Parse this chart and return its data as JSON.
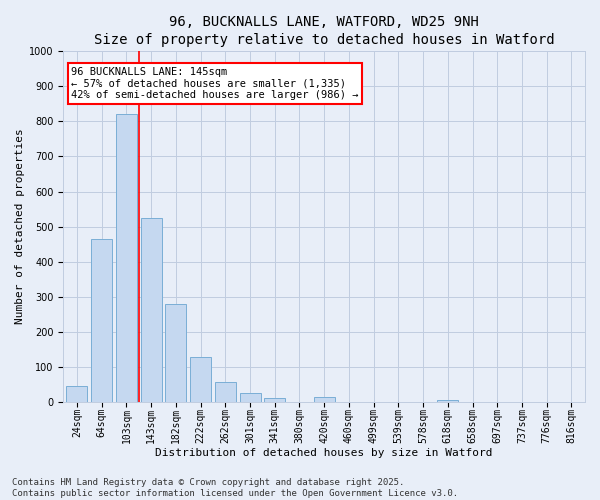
{
  "title": "96, BUCKNALLS LANE, WATFORD, WD25 9NH",
  "subtitle": "Size of property relative to detached houses in Watford",
  "xlabel": "Distribution of detached houses by size in Watford",
  "ylabel": "Number of detached properties",
  "categories": [
    "24sqm",
    "64sqm",
    "103sqm",
    "143sqm",
    "182sqm",
    "222sqm",
    "262sqm",
    "301sqm",
    "341sqm",
    "380sqm",
    "420sqm",
    "460sqm",
    "499sqm",
    "539sqm",
    "578sqm",
    "618sqm",
    "658sqm",
    "697sqm",
    "737sqm",
    "776sqm",
    "816sqm"
  ],
  "values": [
    46,
    465,
    820,
    525,
    278,
    128,
    57,
    25,
    10,
    0,
    13,
    0,
    0,
    0,
    0,
    6,
    0,
    0,
    0,
    0,
    0
  ],
  "bar_color": "#c5d8f0",
  "bar_edge_color": "#7aaed6",
  "annotation_text_line1": "96 BUCKNALLS LANE: 145sqm",
  "annotation_text_line2": "← 57% of detached houses are smaller (1,335)",
  "annotation_text_line3": "42% of semi-detached houses are larger (986) →",
  "annotation_box_color": "white",
  "annotation_box_edge_color": "red",
  "vline_color": "red",
  "vline_x": 2.5,
  "ylim": [
    0,
    1000
  ],
  "yticks": [
    0,
    100,
    200,
    300,
    400,
    500,
    600,
    700,
    800,
    900,
    1000
  ],
  "background_color": "#e8eef8",
  "grid_color": "#c0cce0",
  "footer_line1": "Contains HM Land Registry data © Crown copyright and database right 2025.",
  "footer_line2": "Contains public sector information licensed under the Open Government Licence v3.0.",
  "title_fontsize": 10,
  "subtitle_fontsize": 9,
  "axis_label_fontsize": 8,
  "tick_fontsize": 7,
  "annotation_fontsize": 7.5,
  "footer_fontsize": 6.5,
  "ylabel_fontsize": 8
}
